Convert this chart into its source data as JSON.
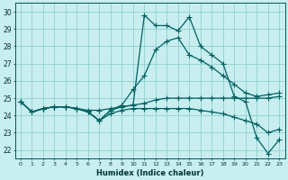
{
  "xlabel": "Humidex (Indice chaleur)",
  "bg_color": "#c8eef0",
  "grid_color": "#90d0d0",
  "line_color": "#006060",
  "xlim": [
    -0.5,
    23.5
  ],
  "ylim": [
    21.5,
    30.5
  ],
  "xticks": [
    0,
    1,
    2,
    3,
    4,
    5,
    6,
    7,
    8,
    9,
    10,
    11,
    12,
    13,
    14,
    15,
    16,
    17,
    18,
    19,
    20,
    21,
    22,
    23
  ],
  "yticks": [
    22,
    23,
    24,
    25,
    26,
    27,
    28,
    29,
    30
  ],
  "curve1_main": [
    24.8,
    24.2,
    24.4,
    24.5,
    24.5,
    24.4,
    24.2,
    23.7,
    24.3,
    24.5,
    24.6,
    29.8,
    29.2,
    29.2,
    28.9,
    29.7,
    28.0,
    27.5,
    27.0,
    25.1,
    24.8,
    22.7,
    21.8,
    22.6
  ],
  "curve2_avg": [
    24.8,
    24.2,
    24.4,
    24.5,
    24.5,
    24.4,
    24.3,
    24.3,
    24.4,
    24.5,
    24.6,
    24.7,
    24.9,
    25.0,
    25.0,
    25.0,
    25.0,
    25.0,
    25.0,
    25.0,
    25.0,
    25.0,
    25.0,
    25.1
  ],
  "curve3_smooth": [
    24.8,
    24.2,
    24.4,
    24.5,
    24.5,
    24.4,
    24.2,
    23.7,
    24.3,
    24.6,
    25.5,
    26.3,
    27.8,
    28.3,
    28.5,
    27.5,
    27.2,
    26.8,
    26.3,
    25.8,
    25.3,
    25.1,
    25.2,
    25.3
  ],
  "curve4_low": [
    24.8,
    24.2,
    24.4,
    24.5,
    24.5,
    24.4,
    24.2,
    23.7,
    24.1,
    24.3,
    24.4,
    24.4,
    24.4,
    24.4,
    24.4,
    24.4,
    24.3,
    24.2,
    24.1,
    23.9,
    23.7,
    23.5,
    23.0,
    23.2
  ]
}
